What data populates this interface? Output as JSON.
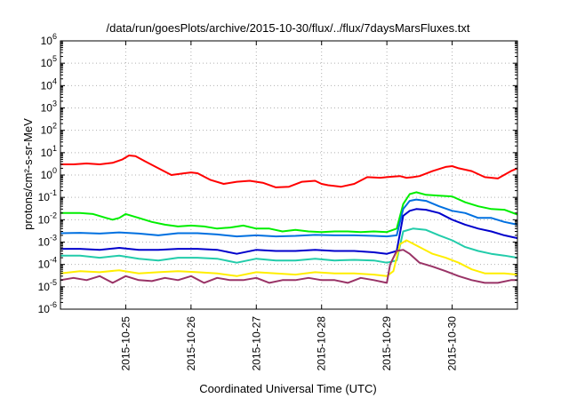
{
  "chart_data": {
    "type": "line",
    "title": "/data/run/goesPlots/archive/2015-10-30/flux/../flux/7daysMarsFluxes.txt",
    "xlabel": "Coordinated Universal Time (UTC)",
    "ylabel": "protons/cm²-s-sr-MeV",
    "y_scale": "log",
    "ylim": [
      1e-06,
      1000000.0
    ],
    "y_ticks": [
      {
        "value": 1e-06,
        "base": "10",
        "exp": "-6"
      },
      {
        "value": 1e-05,
        "base": "10",
        "exp": "-5"
      },
      {
        "value": 0.0001,
        "base": "10",
        "exp": "-4"
      },
      {
        "value": 0.001,
        "base": "10",
        "exp": "-3"
      },
      {
        "value": 0.01,
        "base": "10",
        "exp": "-2"
      },
      {
        "value": 0.1,
        "base": "10",
        "exp": "-1"
      },
      {
        "value": 1,
        "base": "10",
        "exp": "0"
      },
      {
        "value": 10,
        "base": "10",
        "exp": "1"
      },
      {
        "value": 100,
        "base": "10",
        "exp": "2"
      },
      {
        "value": 1000,
        "base": "10",
        "exp": "3"
      },
      {
        "value": 10000,
        "base": "10",
        "exp": "4"
      },
      {
        "value": 100000,
        "base": "10",
        "exp": "5"
      },
      {
        "value": 1000000,
        "base": "10",
        "exp": "6"
      }
    ],
    "xlim": [
      0,
      7
    ],
    "x_ticks": [
      {
        "value": 1,
        "label": "2015-10-25"
      },
      {
        "value": 2,
        "label": "2015-10-26"
      },
      {
        "value": 3,
        "label": "2015-10-27"
      },
      {
        "value": 4,
        "label": "2015-10-28"
      },
      {
        "value": 5,
        "label": "2015-10-29"
      },
      {
        "value": 6,
        "label": "2015-10-30"
      }
    ],
    "grid": true,
    "x_unit_note": "x = days from 2015-10-24 00:00 UTC",
    "series": [
      {
        "color": "#ff0000",
        "x": [
          0.0,
          0.2,
          0.4,
          0.6,
          0.8,
          0.95,
          1.05,
          1.15,
          1.3,
          1.5,
          1.7,
          1.9,
          2.0,
          2.1,
          2.3,
          2.5,
          2.7,
          2.9,
          3.1,
          3.3,
          3.5,
          3.7,
          3.9,
          4.0,
          4.1,
          4.3,
          4.5,
          4.7,
          4.9,
          5.0,
          5.1,
          5.2,
          5.3,
          5.4,
          5.5,
          5.7,
          5.9,
          6.0,
          6.1,
          6.3,
          6.5,
          6.7,
          6.9,
          7.0
        ],
        "y": [
          3.0,
          3.0,
          3.3,
          3.0,
          3.5,
          5.0,
          7.5,
          7.0,
          4.0,
          2.0,
          1.0,
          1.2,
          1.3,
          1.2,
          0.6,
          0.4,
          0.5,
          0.55,
          0.45,
          0.28,
          0.3,
          0.5,
          0.55,
          0.4,
          0.35,
          0.3,
          0.4,
          0.8,
          0.75,
          0.8,
          0.85,
          0.9,
          0.75,
          0.8,
          0.9,
          1.5,
          2.3,
          2.5,
          2.0,
          1.5,
          0.8,
          0.7,
          1.5,
          2.0
        ]
      },
      {
        "color": "#00ee00",
        "x": [
          0.0,
          0.3,
          0.5,
          0.7,
          0.8,
          0.9,
          1.0,
          1.2,
          1.4,
          1.6,
          1.8,
          2.0,
          2.2,
          2.4,
          2.6,
          2.8,
          3.0,
          3.2,
          3.4,
          3.6,
          3.8,
          4.0,
          4.2,
          4.4,
          4.6,
          4.8,
          5.0,
          5.15,
          5.25,
          5.35,
          5.45,
          5.6,
          5.8,
          6.0,
          6.2,
          6.4,
          6.6,
          6.8,
          7.0
        ],
        "y": [
          0.02,
          0.02,
          0.018,
          0.012,
          0.01,
          0.012,
          0.018,
          0.012,
          0.008,
          0.006,
          0.005,
          0.0055,
          0.005,
          0.004,
          0.0045,
          0.0055,
          0.004,
          0.004,
          0.003,
          0.0035,
          0.003,
          0.0028,
          0.003,
          0.003,
          0.0028,
          0.003,
          0.0028,
          0.004,
          0.05,
          0.14,
          0.17,
          0.13,
          0.12,
          0.11,
          0.06,
          0.04,
          0.03,
          0.028,
          0.017
        ]
      },
      {
        "color": "#0070e0",
        "x": [
          0.0,
          0.3,
          0.6,
          0.9,
          1.2,
          1.5,
          1.8,
          2.1,
          2.4,
          2.7,
          3.0,
          3.3,
          3.6,
          3.9,
          4.2,
          4.5,
          4.8,
          5.0,
          5.15,
          5.25,
          5.35,
          5.45,
          5.6,
          5.8,
          6.0,
          6.2,
          6.4,
          6.6,
          6.8,
          7.0
        ],
        "y": [
          0.0025,
          0.0026,
          0.0024,
          0.0027,
          0.0024,
          0.002,
          0.0025,
          0.0025,
          0.0022,
          0.0018,
          0.002,
          0.0018,
          0.0019,
          0.0021,
          0.002,
          0.002,
          0.0019,
          0.0018,
          0.002,
          0.03,
          0.07,
          0.08,
          0.07,
          0.04,
          0.025,
          0.02,
          0.012,
          0.012,
          0.008,
          0.006
        ]
      },
      {
        "color": "#0000cc",
        "x": [
          0.0,
          0.3,
          0.6,
          0.9,
          1.2,
          1.5,
          1.8,
          2.1,
          2.4,
          2.7,
          3.0,
          3.3,
          3.6,
          3.9,
          4.2,
          4.5,
          4.8,
          5.0,
          5.15,
          5.25,
          5.35,
          5.45,
          5.6,
          5.8,
          6.0,
          6.2,
          6.4,
          6.6,
          6.8,
          7.0
        ],
        "y": [
          0.0005,
          0.0005,
          0.00045,
          0.00055,
          0.00045,
          0.00045,
          0.0005,
          0.0005,
          0.00045,
          0.0003,
          0.00045,
          0.0004,
          0.0004,
          0.00045,
          0.0004,
          0.0004,
          0.00035,
          0.0003,
          0.0004,
          0.015,
          0.025,
          0.03,
          0.028,
          0.02,
          0.01,
          0.006,
          0.004,
          0.003,
          0.002,
          0.0015
        ]
      },
      {
        "color": "#22ccaa",
        "x": [
          0.0,
          0.3,
          0.6,
          0.9,
          1.2,
          1.5,
          1.8,
          2.1,
          2.4,
          2.7,
          3.0,
          3.3,
          3.6,
          3.9,
          4.2,
          4.5,
          4.8,
          5.0,
          5.15,
          5.25,
          5.4,
          5.6,
          5.8,
          6.0,
          6.2,
          6.4,
          6.6,
          6.8,
          7.0
        ],
        "y": [
          0.00025,
          0.00025,
          0.0002,
          0.00025,
          0.00018,
          0.00015,
          0.0002,
          0.0002,
          0.00018,
          0.00012,
          0.00018,
          0.00015,
          0.00015,
          0.00018,
          0.00015,
          0.00016,
          0.00015,
          0.00012,
          0.00015,
          0.003,
          0.004,
          0.0035,
          0.002,
          0.0012,
          0.0006,
          0.0004,
          0.0003,
          0.00025,
          0.0002
        ]
      },
      {
        "color": "#ffee00",
        "x": [
          0.0,
          0.3,
          0.6,
          0.9,
          1.2,
          1.5,
          1.8,
          2.1,
          2.4,
          2.7,
          3.0,
          3.3,
          3.6,
          3.9,
          4.2,
          4.5,
          4.8,
          5.0,
          5.1,
          5.2,
          5.3,
          5.5,
          5.7,
          5.9,
          6.1,
          6.3,
          6.5,
          6.8,
          7.0
        ],
        "y": [
          4e-05,
          5e-05,
          4.5e-05,
          5.5e-05,
          4e-05,
          4.5e-05,
          5e-05,
          4.5e-05,
          4e-05,
          3e-05,
          4.5e-05,
          4e-05,
          3.5e-05,
          4.5e-05,
          4e-05,
          4e-05,
          3.5e-05,
          3e-05,
          5e-05,
          0.0008,
          0.0012,
          0.0006,
          0.0003,
          0.0002,
          0.00012,
          6e-05,
          4e-05,
          4e-05,
          3.5e-05
        ]
      },
      {
        "color": "#993366",
        "x": [
          0.0,
          0.2,
          0.4,
          0.6,
          0.8,
          1.0,
          1.2,
          1.4,
          1.6,
          1.8,
          2.0,
          2.2,
          2.4,
          2.6,
          2.8,
          3.0,
          3.2,
          3.4,
          3.6,
          3.8,
          4.0,
          4.2,
          4.4,
          4.6,
          4.8,
          5.0,
          5.05,
          5.15,
          5.25,
          5.35,
          5.5,
          5.7,
          5.9,
          6.1,
          6.3,
          6.5,
          6.7,
          6.9,
          7.0
        ],
        "y": [
          2e-05,
          2.5e-05,
          2e-05,
          3e-05,
          1.5e-05,
          3e-05,
          2e-05,
          1.8e-05,
          2.5e-05,
          2e-05,
          3e-05,
          1.5e-05,
          2.5e-05,
          2e-05,
          2e-05,
          2.5e-05,
          1.5e-05,
          2e-05,
          2e-05,
          2.5e-05,
          2e-05,
          2e-05,
          1.5e-05,
          2.5e-05,
          2e-05,
          1.5e-05,
          0.0001,
          0.0004,
          0.00045,
          0.0003,
          0.00012,
          8e-05,
          5e-05,
          3e-05,
          2e-05,
          1.5e-05,
          1.5e-05,
          2e-05,
          2e-05
        ]
      }
    ]
  }
}
